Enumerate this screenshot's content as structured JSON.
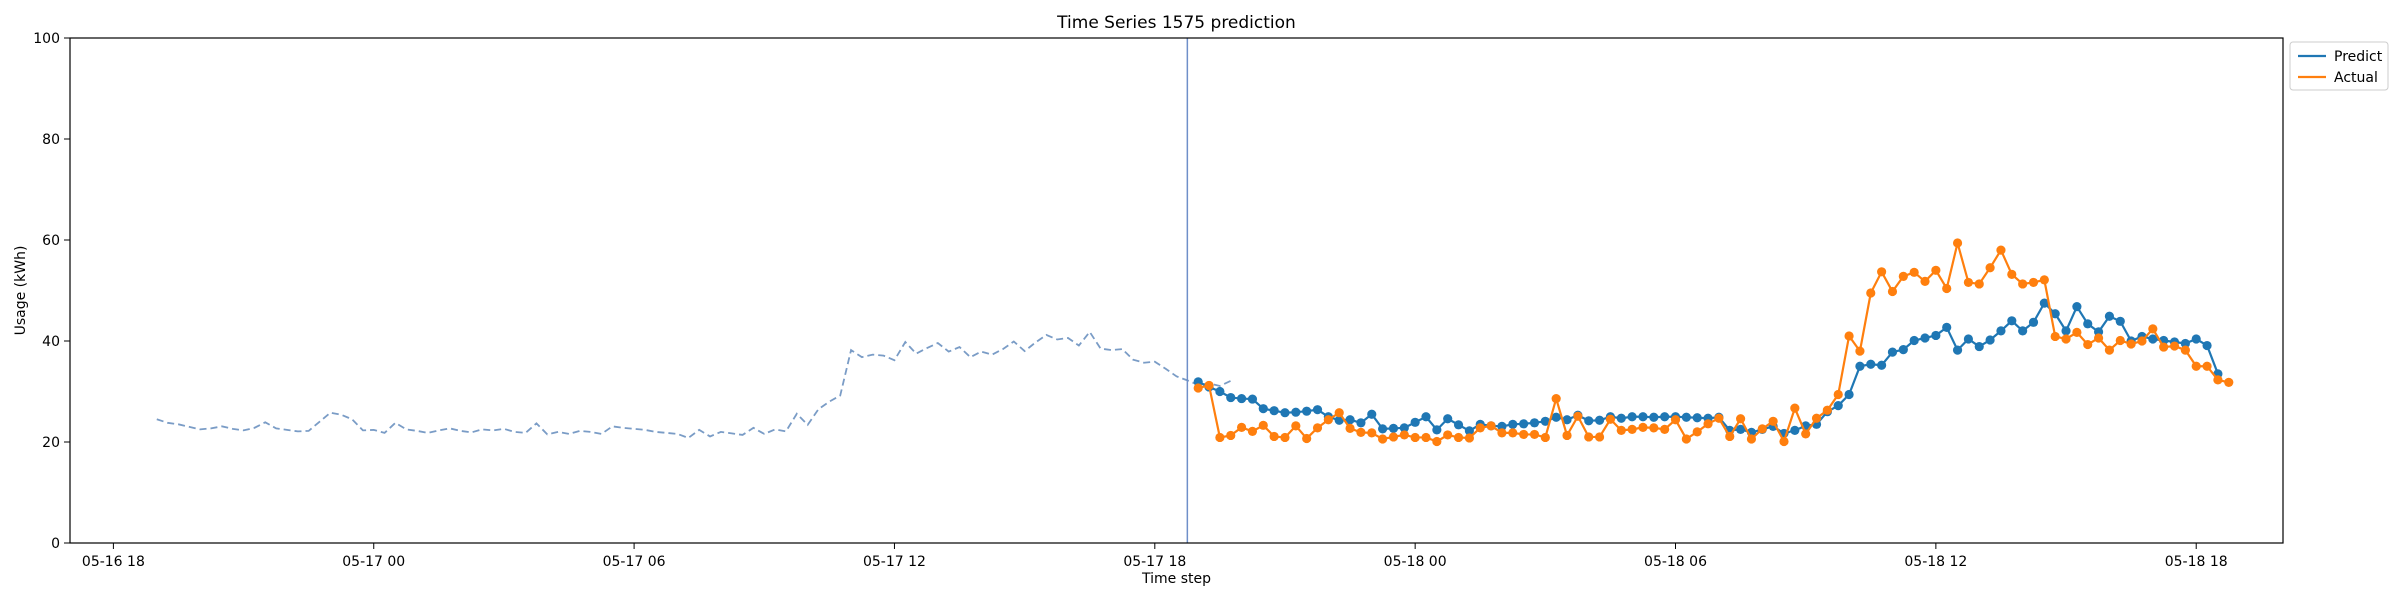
{
  "chart_data": {
    "type": "line",
    "title": "Time Series 1575 prediction",
    "xlabel": "Time step",
    "ylabel": "Usage (kWh)",
    "ylim": [
      0,
      100
    ],
    "yticks": [
      0,
      20,
      40,
      60,
      80,
      100
    ],
    "xlim": [
      "2024-05-16 17:00",
      "2024-05-18 20:00"
    ],
    "xticks": [
      {
        "label": "05-16 18",
        "value": "2024-05-16 18:00"
      },
      {
        "label": "05-17 00",
        "value": "2024-05-17 00:00"
      },
      {
        "label": "05-17 06",
        "value": "2024-05-17 06:00"
      },
      {
        "label": "05-17 12",
        "value": "2024-05-17 12:00"
      },
      {
        "label": "05-17 18",
        "value": "2024-05-17 18:00"
      },
      {
        "label": "05-18 00",
        "value": "2024-05-18 00:00"
      },
      {
        "label": "05-18 06",
        "value": "2024-05-18 06:00"
      },
      {
        "label": "05-18 12",
        "value": "2024-05-18 12:00"
      },
      {
        "label": "05-18 18",
        "value": "2024-05-18 18:00"
      }
    ],
    "legend_position": "upper-right, outside plot",
    "colors": {
      "predict": "#1f77b4",
      "actual": "#ff7f0e",
      "history": "#7a9cc6",
      "forecast_start": "#6f8fc9"
    },
    "forecast_start": "2024-05-17 18:45",
    "history": {
      "start": "2024-05-16 19:00",
      "step_minutes": 15,
      "values": [
        24.5,
        23.8,
        23.5,
        23.0,
        22.5,
        22.7,
        23.1,
        22.6,
        22.3,
        22.8,
        23.9,
        22.7,
        22.4,
        22.1,
        22.2,
        24.0,
        25.8,
        25.4,
        24.5,
        22.3,
        22.4,
        21.8,
        23.8,
        22.5,
        22.2,
        21.8,
        22.3,
        22.7,
        22.2,
        21.9,
        22.5,
        22.3,
        22.6,
        22.0,
        21.8,
        23.7,
        21.5,
        22.0,
        21.6,
        22.2,
        22.0,
        21.6,
        23.1,
        22.8,
        22.6,
        22.4,
        22.0,
        21.8,
        21.6,
        20.8,
        22.4,
        21.1,
        22.0,
        21.7,
        21.4,
        22.8,
        21.6,
        22.5,
        22.1,
        25.6,
        23.4,
        26.5,
        28.0,
        29.2,
        38.2,
        36.8,
        37.3,
        37.1,
        36.2,
        39.8,
        37.5,
        38.6,
        39.6,
        37.9,
        38.8,
        36.8,
        37.9,
        37.3,
        38.4,
        39.9,
        38.0,
        39.7,
        41.2,
        40.3,
        40.6,
        39.1,
        41.8,
        38.5,
        38.2,
        38.4,
        36.3,
        35.7,
        35.9,
        34.5,
        33.0,
        32.2,
        31.3,
        31.6,
        31.1,
        32.1
      ]
    },
    "series": [
      {
        "name": "Predict",
        "start": "2024-05-17 19:00",
        "step_minutes": 15,
        "values": [
          31.9,
          30.9,
          30.0,
          28.8,
          28.6,
          28.5,
          26.6,
          26.2,
          25.8,
          25.9,
          26.1,
          26.4,
          25.0,
          24.3,
          24.4,
          23.8,
          25.5,
          22.6,
          22.7,
          22.8,
          23.9,
          25.0,
          22.4,
          24.6,
          23.4,
          22.2,
          23.5,
          23.2,
          23.1,
          23.5,
          23.6,
          23.8,
          24.1,
          24.9,
          24.4,
          25.3,
          24.2,
          24.3,
          25.0,
          24.7,
          25.0,
          25.0,
          24.9,
          25.0,
          25.0,
          24.9,
          24.8,
          24.7,
          24.9,
          22.3,
          22.5,
          21.9,
          22.5,
          23.1,
          21.7,
          22.3,
          23.2,
          23.5,
          26.0,
          27.2,
          29.4,
          35.0,
          35.4,
          35.2,
          37.8,
          38.3,
          40.1,
          40.6,
          41.1,
          42.7,
          38.2,
          40.4,
          38.9,
          40.2,
          42.0,
          44.0,
          42.0,
          43.7,
          47.5,
          45.4,
          42.0,
          46.8,
          43.4,
          41.8,
          44.9,
          43.9,
          40.0,
          40.9,
          40.4,
          40.1,
          39.8,
          39.5,
          40.4,
          39.1,
          33.5
        ]
      },
      {
        "name": "Actual",
        "start": "2024-05-17 19:00",
        "step_minutes": 15,
        "values": [
          30.7,
          31.2,
          20.9,
          21.3,
          22.9,
          22.1,
          23.3,
          21.1,
          20.9,
          23.2,
          20.7,
          22.8,
          24.4,
          25.8,
          22.7,
          21.9,
          21.8,
          20.6,
          21.0,
          21.4,
          20.9,
          20.9,
          20.1,
          21.4,
          20.9,
          20.8,
          22.8,
          23.2,
          21.8,
          21.8,
          21.5,
          21.5,
          20.9,
          28.6,
          21.3,
          25.1,
          21.0,
          21.0,
          24.5,
          22.3,
          22.5,
          22.9,
          22.8,
          22.5,
          24.4,
          20.6,
          22.0,
          23.6,
          24.7,
          21.1,
          24.6,
          20.6,
          22.6,
          24.1,
          20.1,
          26.7,
          21.6,
          24.7,
          26.3,
          29.4,
          41.0,
          38.0,
          49.5,
          53.7,
          49.8,
          52.8,
          53.6,
          51.8,
          54.0,
          50.4,
          59.4,
          51.6,
          51.3,
          54.5,
          58.0,
          53.2,
          51.3,
          51.6,
          52.1,
          40.9,
          40.4,
          41.7,
          39.3,
          40.6,
          38.2,
          40.1,
          39.4,
          40.0,
          42.4,
          38.8,
          39.0,
          38.2,
          35.0,
          35.0,
          32.3,
          31.8
        ]
      }
    ]
  }
}
